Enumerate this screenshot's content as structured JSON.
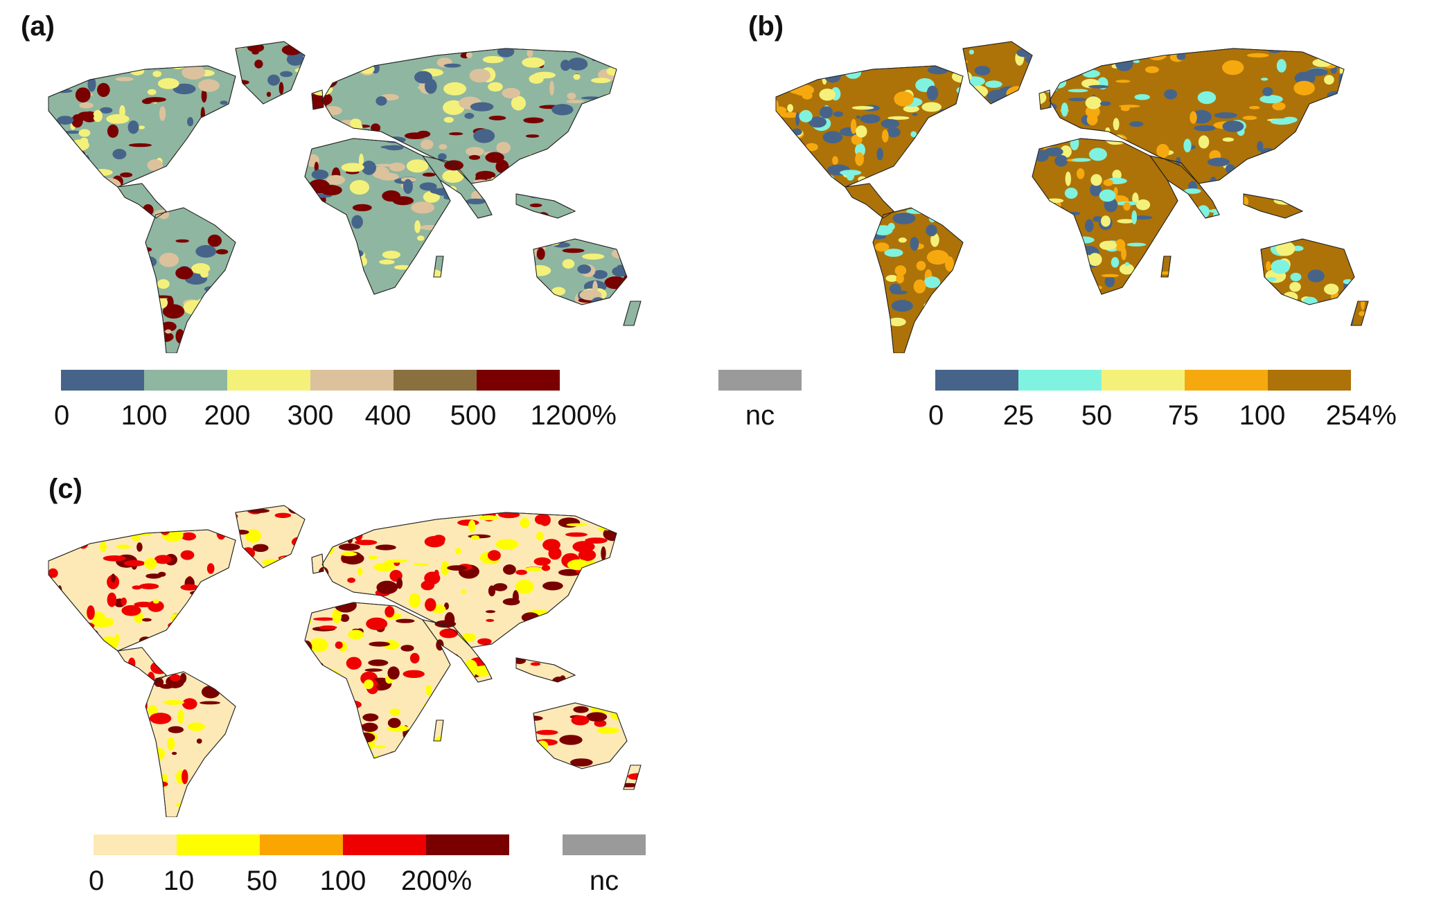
{
  "panels": [
    {
      "label": "(a)",
      "legend": {
        "colors": [
          "#46648a",
          "#8fb6a0",
          "#f4f17a",
          "#dbc29d",
          "#8a703f",
          "#7a0000"
        ],
        "ticks": [
          "0",
          "100",
          "200",
          "300",
          "400",
          "500",
          "1200%"
        ]
      },
      "map_colors": {
        "land": "#8fb6a0",
        "spots": [
          "#46648a",
          "#f4f17a",
          "#7a0000",
          "#dbc29d"
        ]
      }
    },
    {
      "label": "(b)",
      "nc": {
        "label": "nc",
        "color": "#9a9a9a"
      },
      "legend": {
        "colors": [
          "#46648a",
          "#7ff3df",
          "#f4f17a",
          "#f6a90e",
          "#ad7308"
        ],
        "ticks": [
          "0",
          "25",
          "50",
          "75",
          "100",
          "254%"
        ]
      },
      "map_colors": {
        "land": "#ad7308",
        "spots": [
          "#7ff3df",
          "#f4f17a",
          "#46648a",
          "#f6a90e"
        ]
      }
    },
    {
      "label": "(c)",
      "nc": {
        "label": "nc",
        "color": "#9a9a9a"
      },
      "legend": {
        "colors": [
          "#fde9b6",
          "#fefe00",
          "#fba500",
          "#ee0000",
          "#7a0000"
        ],
        "ticks": [
          "0",
          "10",
          "50",
          "100",
          "200%"
        ]
      },
      "map_colors": {
        "land": "#fde9b6",
        "spots": [
          "#7a0000",
          "#fefe00",
          "#ee0000"
        ]
      }
    }
  ]
}
